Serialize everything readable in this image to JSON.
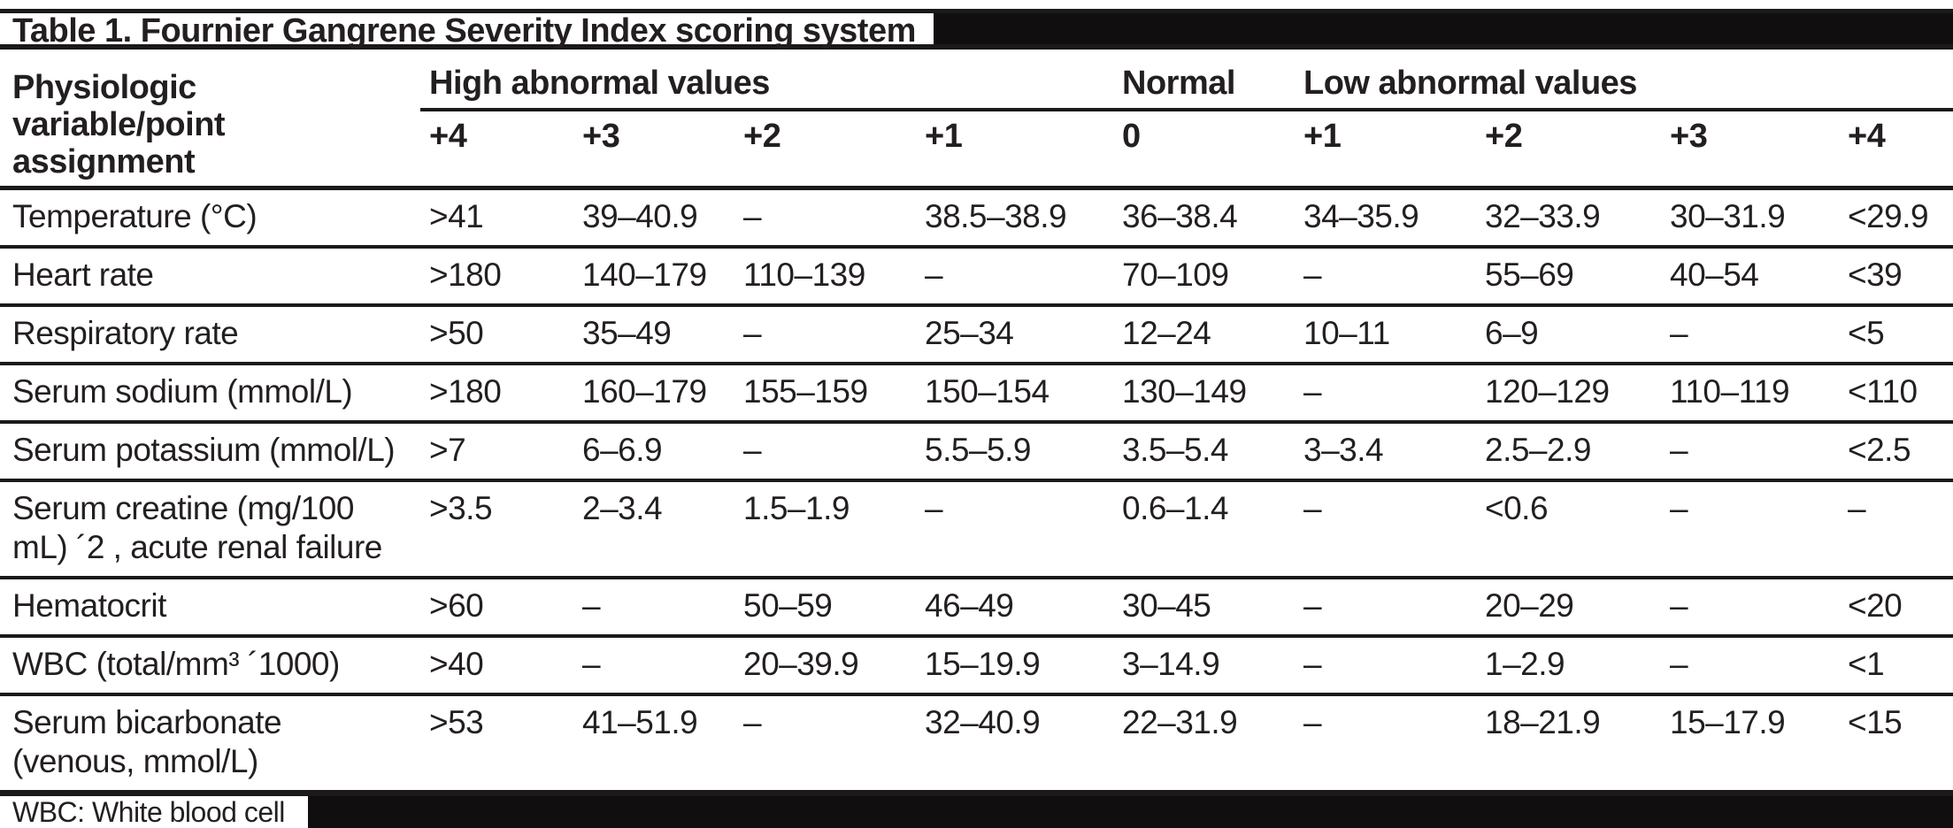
{
  "table": {
    "title": "Table 1. Fournier Gangrene Severity Index scoring system",
    "variable_header": "Physiologic variable/point assignment",
    "groups": [
      {
        "label": "High abnormal values"
      },
      {
        "label": "Normal"
      },
      {
        "label": "Low abnormal values"
      }
    ],
    "subheaders": [
      "+4",
      "+3",
      "+2",
      "+1",
      "0",
      "+1",
      "+2",
      "+3",
      "+4"
    ],
    "rows": [
      {
        "variable": "Temperature (°C)",
        "values": [
          ">41",
          "39–40.9",
          "–",
          "38.5–38.9",
          "36–38.4",
          "34–35.9",
          "32–33.9",
          "30–31.9",
          "<29.9"
        ]
      },
      {
        "variable": "Heart rate",
        "values": [
          ">180",
          "140–179",
          "110–139",
          "–",
          "70–109",
          "–",
          "55–69",
          "40–54",
          "<39"
        ]
      },
      {
        "variable": "Respiratory rate",
        "values": [
          ">50",
          "35–49",
          "–",
          "25–34",
          "12–24",
          "10–11",
          "6–9",
          "–",
          "<5"
        ]
      },
      {
        "variable": "Serum sodium (mmol/L)",
        "values": [
          ">180",
          "160–179",
          "155–159",
          "150–154",
          "130–149",
          "–",
          "120–129",
          "110–119",
          "<110"
        ]
      },
      {
        "variable": "Serum potassium (mmol/L)",
        "values": [
          ">7",
          "6–6.9",
          "–",
          "5.5–5.9",
          "3.5–5.4",
          "3–3.4",
          "2.5–2.9",
          "–",
          "<2.5"
        ]
      },
      {
        "variable": "Serum creatine (mg/100 mL) ´2 , acute renal failure",
        "values": [
          ">3.5",
          "2–3.4",
          "1.5–1.9",
          "–",
          "0.6–1.4",
          "–",
          "<0.6",
          "–",
          "–"
        ]
      },
      {
        "variable": "Hematocrit",
        "values": [
          ">60",
          "–",
          "50–59",
          "46–49",
          "30–45",
          "–",
          "20–29",
          "–",
          "<20"
        ]
      },
      {
        "variable": "WBC (total/mm³ ´1000)",
        "values": [
          ">40",
          "–",
          "20–39.9",
          "15–19.9",
          "3–14.9",
          "–",
          "1–2.9",
          "–",
          "<1"
        ]
      },
      {
        "variable": "Serum bicarbonate (venous, mmol/L)",
        "values": [
          ">53",
          "41–51.9",
          "–",
          "32–40.9",
          "22–31.9",
          "–",
          "18–21.9",
          "15–17.9",
          "<15"
        ]
      }
    ],
    "footnote": "WBC: White blood cell"
  },
  "colors": {
    "text": "#231f20",
    "rule": "#1c191a",
    "bar_fill": "#100e0f",
    "background": "#ffffff"
  }
}
